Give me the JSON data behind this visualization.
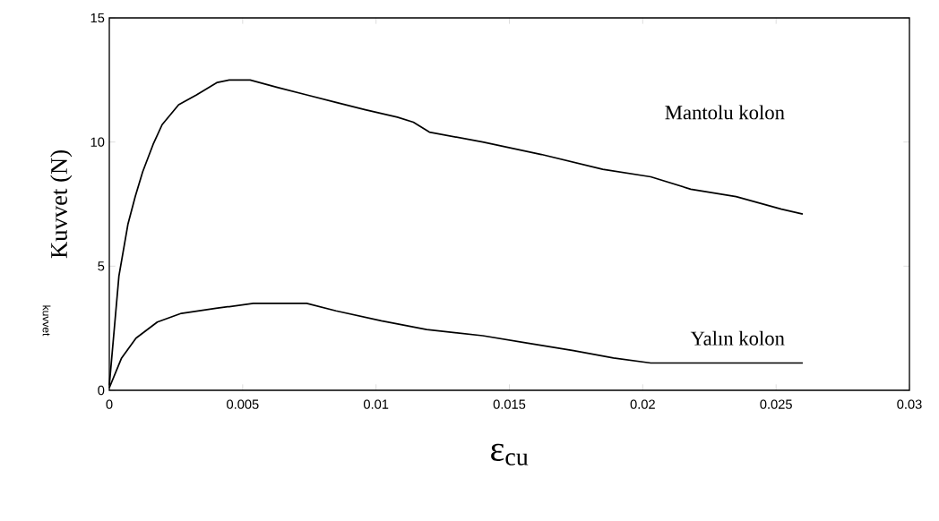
{
  "chart_data": {
    "type": "line",
    "xlabel": "ε$_{cu}$",
    "ylabel": "Kuvvet (N)",
    "annotations": [
      "kuvvet"
    ],
    "xlim": [
      0,
      0.03
    ],
    "xticks": [
      0,
      0.005,
      0.01,
      0.015,
      0.02,
      0.025,
      0.03
    ],
    "ylim": [
      0,
      15
    ],
    "yticks": [
      0,
      5,
      10,
      15
    ],
    "grid": false,
    "legend": false,
    "marker": "none",
    "line_style": "solid",
    "series": [
      {
        "name": "Mantolu kolon",
        "color": "#000000",
        "x": [
          0,
          0.00036,
          0.0007,
          0.00097,
          0.00125,
          0.00164,
          0.00198,
          0.0026,
          0.00327,
          0.00405,
          0.0045,
          0.00528,
          0.0063,
          0.0074,
          0.0085,
          0.0096,
          0.0108,
          0.0114,
          0.012,
          0.013,
          0.014,
          0.0162,
          0.0185,
          0.0203,
          0.0218,
          0.0235,
          0.0252,
          0.026
        ],
        "values": [
          0.2,
          4.6,
          6.7,
          7.8,
          8.8,
          9.9,
          10.7,
          11.5,
          11.9,
          12.4,
          12.5,
          12.5,
          12.2,
          11.9,
          11.6,
          11.3,
          11.0,
          10.8,
          10.4,
          10.2,
          10.0,
          9.5,
          8.9,
          8.6,
          8.1,
          7.8,
          7.3,
          7.1
        ]
      },
      {
        "name": "Yalın kolon",
        "color": "#000000",
        "x": [
          0,
          0.00046,
          0.001,
          0.0018,
          0.0027,
          0.004,
          0.0054,
          0.0074,
          0.0085,
          0.0102,
          0.0119,
          0.014,
          0.0157,
          0.0174,
          0.0189,
          0.0203,
          0.026
        ],
        "values": [
          0.1,
          1.3,
          2.1,
          2.75,
          3.1,
          3.3,
          3.5,
          3.5,
          3.2,
          2.8,
          2.45,
          2.2,
          1.9,
          1.6,
          1.3,
          1.1,
          1.1
        ]
      }
    ]
  }
}
